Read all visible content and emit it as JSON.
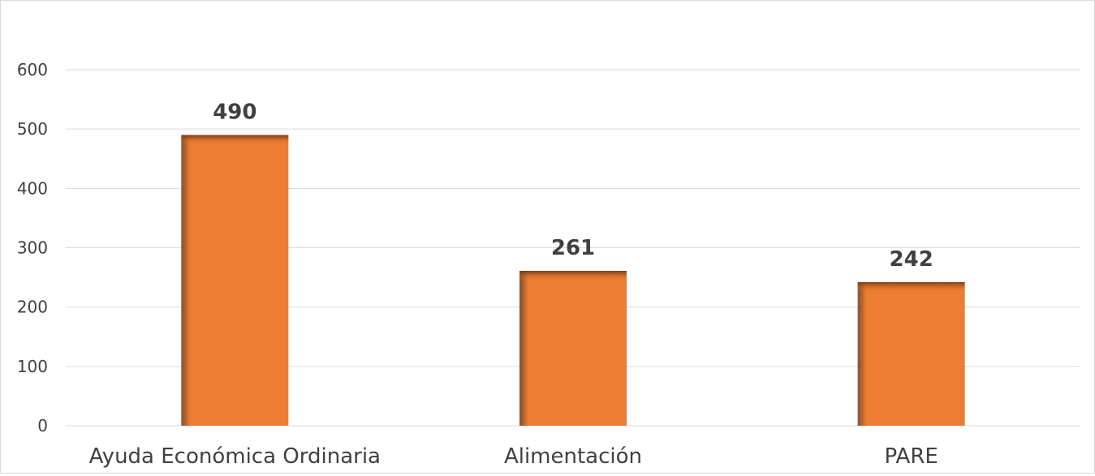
{
  "chart_data": {
    "type": "bar",
    "categories": [
      "Ayuda Económica Ordinaria",
      "Alimentación",
      "PARE"
    ],
    "series": [
      {
        "values": [
          490,
          261,
          242
        ]
      }
    ],
    "data_labels": [
      "490",
      "261",
      "242"
    ],
    "ylim": [
      0,
      600
    ],
    "y_ticks": [
      0,
      100,
      200,
      300,
      400,
      500,
      600
    ],
    "y_tick_labels": [
      "0",
      "100",
      "200",
      "300",
      "400",
      "500",
      "600"
    ],
    "grid": true,
    "legend": "none",
    "bar_color": "#ED7D31",
    "bar_shadow_color": "#7A3A10",
    "grid_color": "#D9D9D9",
    "label_color": "#404040"
  }
}
